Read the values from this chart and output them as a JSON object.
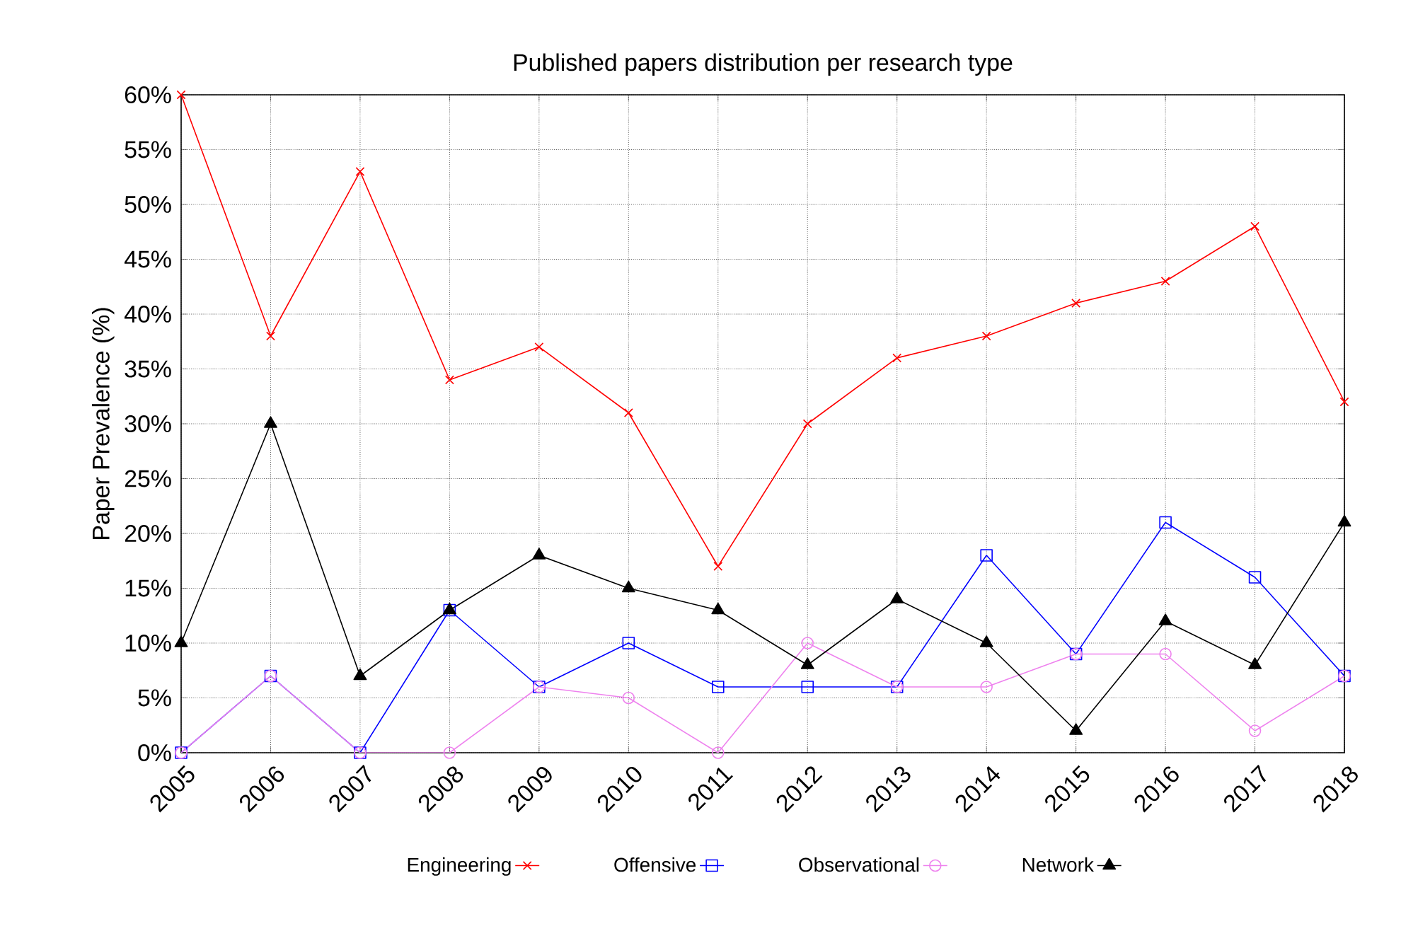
{
  "chart_data": {
    "type": "line",
    "title": "Published papers distribution per research type",
    "ylabel": "Paper Prevalence (%)",
    "x": [
      2005,
      2006,
      2007,
      2008,
      2009,
      2010,
      2011,
      2012,
      2013,
      2014,
      2015,
      2016,
      2017,
      2018
    ],
    "xlim": [
      2005,
      2018
    ],
    "xticks": [
      2005,
      2006,
      2007,
      2008,
      2009,
      2010,
      2011,
      2012,
      2013,
      2014,
      2015,
      2016,
      2017,
      2018
    ],
    "ylim": [
      0,
      60
    ],
    "yticks": [
      {
        "value": 0,
        "label": "0%"
      },
      {
        "value": 5,
        "label": "5%"
      },
      {
        "value": 10,
        "label": "10%"
      },
      {
        "value": 15,
        "label": "15%"
      },
      {
        "value": 20,
        "label": "20%"
      },
      {
        "value": 25,
        "label": "25%"
      },
      {
        "value": 30,
        "label": "30%"
      },
      {
        "value": 35,
        "label": "35%"
      },
      {
        "value": 40,
        "label": "40%"
      },
      {
        "value": 45,
        "label": "45%"
      },
      {
        "value": 50,
        "label": "50%"
      },
      {
        "value": 55,
        "label": "55%"
      },
      {
        "value": 60,
        "label": "60%"
      }
    ],
    "series": [
      {
        "name": "Engineering",
        "color": "#ff0000",
        "marker": "cross",
        "values": [
          60,
          38,
          53,
          34,
          37,
          31,
          17,
          30,
          36,
          38,
          41,
          43,
          48,
          32
        ]
      },
      {
        "name": "Offensive",
        "color": "#0000ff",
        "marker": "square",
        "values": [
          0,
          7,
          0,
          13,
          6,
          10,
          6,
          6,
          6,
          18,
          9,
          21,
          16,
          7
        ]
      },
      {
        "name": "Observational",
        "color": "#ee82ee",
        "marker": "circle",
        "values": [
          0,
          7,
          0,
          0,
          6,
          5,
          0,
          10,
          6,
          6,
          9,
          9,
          2,
          7
        ]
      },
      {
        "name": "Network",
        "color": "#000000",
        "marker": "triangle",
        "values": [
          10,
          30,
          7,
          13,
          18,
          15,
          13,
          8,
          14,
          10,
          2,
          12,
          8,
          21
        ]
      }
    ],
    "grid": true,
    "legend": "bottom",
    "line_style": "solid"
  }
}
